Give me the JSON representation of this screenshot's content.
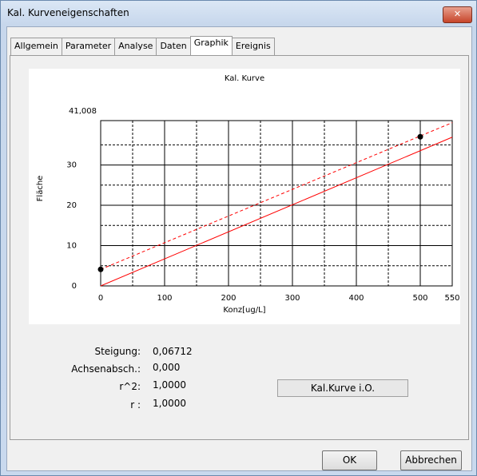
{
  "window": {
    "title": "Kal. Kurveneigenschaften"
  },
  "tabs": [
    "Allgemein",
    "Parameter",
    "Analyse",
    "Daten",
    "Graphik",
    "Ereignis"
  ],
  "active_tab": 4,
  "chart_data": {
    "type": "line",
    "title": "Kal. Kurve",
    "x_label": "Konz[ug/L]",
    "y_label": "Fläche",
    "xlim": [
      0,
      550
    ],
    "ylim": [
      0,
      41.008
    ],
    "xticks": [
      0,
      100,
      200,
      300,
      400,
      500,
      550
    ],
    "yticks": [
      0,
      10,
      20,
      30,
      {
        "value": 41.008,
        "label": "41,008"
      }
    ],
    "xminor": [
      50,
      150,
      250,
      350,
      450
    ],
    "yminor": [
      5,
      15,
      25,
      35
    ],
    "grid": true,
    "series": [
      {
        "style": "solid",
        "color": "#ff0000",
        "x": [
          0,
          550
        ],
        "values": [
          0,
          36.9
        ]
      },
      {
        "style": "dashed",
        "color": "#ff0000",
        "x": [
          0,
          550
        ],
        "values": [
          4.1,
          40.5
        ]
      },
      {
        "style": "points",
        "color": "#000000",
        "x": [
          0,
          500
        ],
        "values": [
          4.1,
          37.0
        ]
      }
    ]
  },
  "stats": [
    {
      "label": "Steigung:",
      "value": "0,06712"
    },
    {
      "label": "Achsenabsch.:",
      "value": "0,000"
    },
    {
      "label": "r^2:",
      "value": "1,0000"
    },
    {
      "label": "r :",
      "value": "1,0000"
    }
  ],
  "status_button": "Kal.Kurve i.O.",
  "buttons": {
    "ok": "OK",
    "cancel": "Abbrechen"
  }
}
